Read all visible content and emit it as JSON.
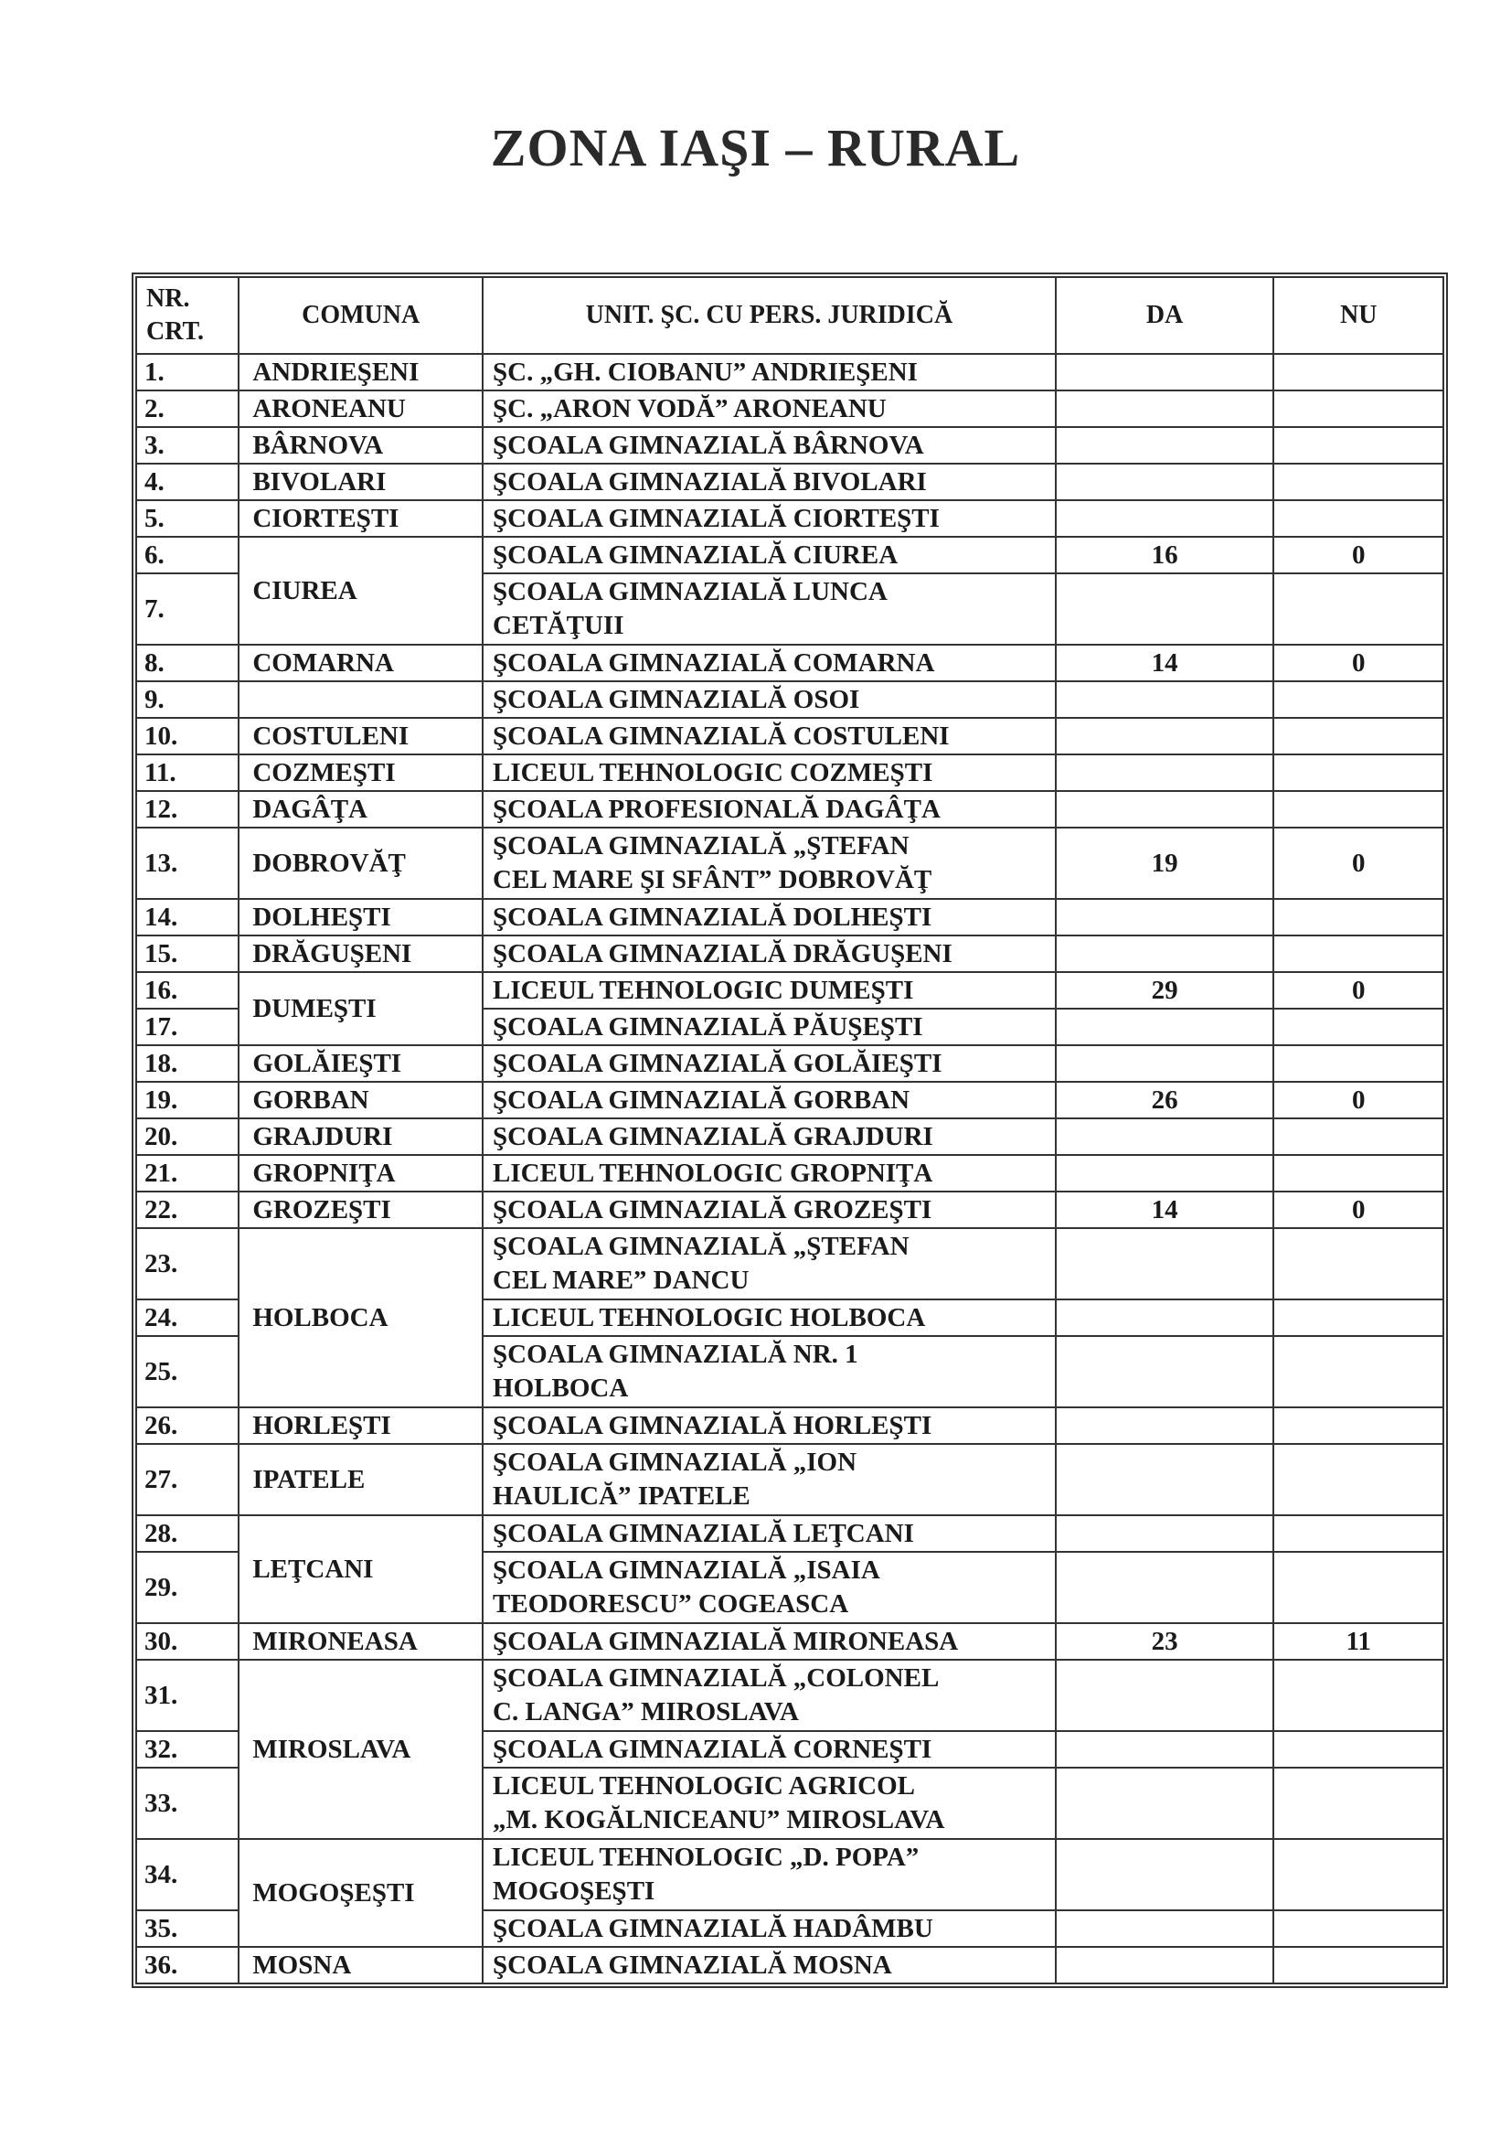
{
  "title": "ZONA IAŞI – RURAL",
  "table": {
    "headers": {
      "nr": "NR.\nCRT.",
      "comuna": "COMUNA",
      "unit": "UNIT. ŞC. CU PERS. JURIDICĂ",
      "da": "DA",
      "nu": "NU"
    },
    "rows": [
      {
        "nr": "1.",
        "comuna": "ANDRIEŞENI",
        "unit": "ŞC. „GH. CIOBANU” ANDRIEŞENI",
        "da": "",
        "nu": ""
      },
      {
        "nr": "2.",
        "comuna": "ARONEANU",
        "unit": "ŞC. „ARON VODĂ” ARONEANU",
        "da": "",
        "nu": ""
      },
      {
        "nr": "3.",
        "comuna": "BÂRNOVA",
        "unit": "ŞCOALA GIMNAZIALĂ BÂRNOVA",
        "da": "",
        "nu": ""
      },
      {
        "nr": "4.",
        "comuna": "BIVOLARI",
        "unit": "ŞCOALA GIMNAZIALĂ BIVOLARI",
        "da": "",
        "nu": ""
      },
      {
        "nr": "5.",
        "comuna": "CIORTEŞTI",
        "unit": "ŞCOALA GIMNAZIALĂ CIORTEŞTI",
        "da": "",
        "nu": ""
      },
      {
        "nr": "6.",
        "comuna": "CIUREA",
        "unit": "ŞCOALA GIMNAZIALĂ CIUREA",
        "da": "16",
        "nu": "0"
      },
      {
        "nr": "7.",
        "comuna": "",
        "unit": "ŞCOALA GIMNAZIALĂ LUNCA\nCETĂŢUII",
        "da": "",
        "nu": ""
      },
      {
        "nr": "8.",
        "comuna": "COMARNA",
        "unit": "ŞCOALA GIMNAZIALĂ COMARNA",
        "da": "14",
        "nu": "0"
      },
      {
        "nr": "9.",
        "comuna": "",
        "unit": "ŞCOALA GIMNAZIALĂ OSOI",
        "da": "",
        "nu": ""
      },
      {
        "nr": "10.",
        "comuna": "COSTULENI",
        "unit": "ŞCOALA GIMNAZIALĂ COSTULENI",
        "da": "",
        "nu": ""
      },
      {
        "nr": "11.",
        "comuna": "COZMEŞTI",
        "unit": "LICEUL TEHNOLOGIC COZMEŞTI",
        "da": "",
        "nu": ""
      },
      {
        "nr": "12.",
        "comuna": "DAGÂŢA",
        "unit": "ŞCOALA PROFESIONALĂ DAGÂŢA",
        "da": "",
        "nu": ""
      },
      {
        "nr": "13.",
        "comuna": "DOBROVĂŢ",
        "unit": "ŞCOALA GIMNAZIALĂ „ŞTEFAN\nCEL MARE ŞI SFÂNT” DOBROVĂŢ",
        "da": "19",
        "nu": "0"
      },
      {
        "nr": "14.",
        "comuna": "DOLHEŞTI",
        "unit": "ŞCOALA GIMNAZIALĂ DOLHEŞTI",
        "da": "",
        "nu": ""
      },
      {
        "nr": "15.",
        "comuna": "DRĂGUŞENI",
        "unit": "ŞCOALA GIMNAZIALĂ DRĂGUŞENI",
        "da": "",
        "nu": ""
      },
      {
        "nr": "16.",
        "comuna": "DUMEŞTI",
        "unit": "LICEUL TEHNOLOGIC DUMEŞTI",
        "da": "29",
        "nu": "0"
      },
      {
        "nr": "17.",
        "comuna": "",
        "unit": "ŞCOALA GIMNAZIALĂ PĂUŞEŞTI",
        "da": "",
        "nu": ""
      },
      {
        "nr": "18.",
        "comuna": "GOLĂIEŞTI",
        "unit": "ŞCOALA GIMNAZIALĂ GOLĂIEŞTI",
        "da": "",
        "nu": ""
      },
      {
        "nr": "19.",
        "comuna": "GORBAN",
        "unit": "ŞCOALA GIMNAZIALĂ GORBAN",
        "da": "26",
        "nu": "0"
      },
      {
        "nr": "20.",
        "comuna": "GRAJDURI",
        "unit": "ŞCOALA GIMNAZIALĂ GRAJDURI",
        "da": "",
        "nu": ""
      },
      {
        "nr": "21.",
        "comuna": "GROPNIŢA",
        "unit": "LICEUL TEHNOLOGIC GROPNIŢA",
        "da": "",
        "nu": ""
      },
      {
        "nr": "22.",
        "comuna": "GROZEŞTI",
        "unit": "ŞCOALA GIMNAZIALĂ GROZEŞTI",
        "da": "14",
        "nu": "0"
      },
      {
        "nr": "23.",
        "comuna": "HOLBOCA",
        "unit": "ŞCOALA GIMNAZIALĂ „ŞTEFAN\nCEL MARE” DANCU",
        "da": "",
        "nu": ""
      },
      {
        "nr": "24.",
        "comuna": "",
        "unit": "LICEUL TEHNOLOGIC HOLBOCA",
        "da": "",
        "nu": ""
      },
      {
        "nr": "25.",
        "comuna": "",
        "unit": "ŞCOALA GIMNAZIALĂ NR. 1\nHOLBOCA",
        "da": "",
        "nu": ""
      },
      {
        "nr": "26.",
        "comuna": "HORLEŞTI",
        "unit": "ŞCOALA GIMNAZIALĂ HORLEŞTI",
        "da": "",
        "nu": ""
      },
      {
        "nr": "27.",
        "comuna": "IPATELE",
        "unit": "ŞCOALA GIMNAZIALĂ „ION\nHAULICĂ” IPATELE",
        "da": "",
        "nu": ""
      },
      {
        "nr": "28.",
        "comuna": "LEŢCANI",
        "unit": "ŞCOALA GIMNAZIALĂ LEŢCANI",
        "da": "",
        "nu": ""
      },
      {
        "nr": "29.",
        "comuna": "",
        "unit": "ŞCOALA GIMNAZIALĂ „ISAIA\nTEODORESCU” COGEASCA",
        "da": "",
        "nu": ""
      },
      {
        "nr": "30.",
        "comuna": "MIRONEASA",
        "unit": "ŞCOALA GIMNAZIALĂ MIRONEASA",
        "da": "23",
        "nu": "11"
      },
      {
        "nr": "31.",
        "comuna": "MIROSLAVA",
        "unit": "ŞCOALA GIMNAZIALĂ „COLONEL\nC. LANGA” MIROSLAVA",
        "da": "",
        "nu": ""
      },
      {
        "nr": "32.",
        "comuna": "",
        "unit": "ŞCOALA GIMNAZIALĂ CORNEŞTI",
        "da": "",
        "nu": ""
      },
      {
        "nr": "33.",
        "comuna": "",
        "unit": "LICEUL TEHNOLOGIC AGRICOL\n„M. KOGĂLNICEANU” MIROSLAVA",
        "da": "",
        "nu": ""
      },
      {
        "nr": "34.",
        "comuna": "MOGOŞEŞTI",
        "unit": "LICEUL TEHNOLOGIC „D. POPA”\nMOGOŞEŞTI",
        "da": "",
        "nu": ""
      },
      {
        "nr": "35.",
        "comuna": "",
        "unit": "ŞCOALA GIMNAZIALĂ HADÂMBU",
        "da": "",
        "nu": ""
      },
      {
        "nr": "36.",
        "comuna": "MOSNA",
        "unit": "ŞCOALA GIMNAZIALĂ MOSNA",
        "da": "",
        "nu": ""
      }
    ]
  }
}
